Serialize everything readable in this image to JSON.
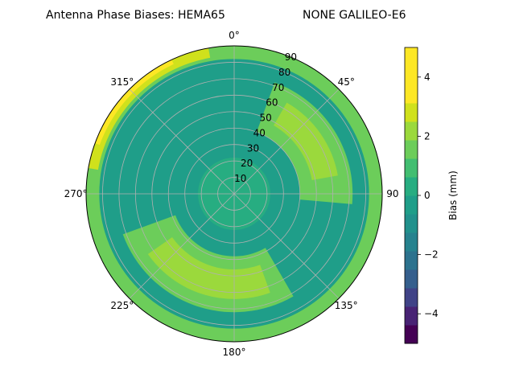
{
  "chart_data": {
    "type": "polar-contour",
    "title": "Antenna Phase Biases: HEMA65",
    "subtitle": "NONE GALILEO-E6",
    "angle_ticks": [
      {
        "deg": 0,
        "label": "0°"
      },
      {
        "deg": 45,
        "label": "45°"
      },
      {
        "deg": 90,
        "label": "90"
      },
      {
        "deg": 135,
        "label": "135°"
      },
      {
        "deg": 180,
        "label": "180°"
      },
      {
        "deg": 225,
        "label": "225°"
      },
      {
        "deg": 270,
        "label": "270°"
      },
      {
        "deg": 315,
        "label": "315°"
      }
    ],
    "radial_ticks": [
      10,
      20,
      30,
      40,
      50,
      60,
      70,
      80,
      90
    ],
    "radial_range": [
      0,
      90
    ],
    "grid": true,
    "colorbar": {
      "label": "Bias (mm)",
      "range": [
        -5,
        5
      ],
      "ticks": [
        -4,
        -2,
        0,
        2,
        4
      ],
      "levels": [
        -5,
        -4.375,
        -3.75,
        -3.125,
        -2.5,
        -1.875,
        -1.25,
        -0.625,
        0,
        0.625,
        1.25,
        1.875,
        2.5,
        3.125,
        3.75,
        4.375,
        5
      ],
      "colors": [
        "#440154",
        "#482374",
        "#404387",
        "#355f8d",
        "#2c728e",
        "#26828e",
        "#21918c",
        "#1f9e89",
        "#27ad81",
        "#42be71",
        "#6ccd5a",
        "#9bd93c",
        "#d0e11c",
        "#fde725",
        "#fde725",
        "#fde725"
      ]
    },
    "regions": [
      {
        "name": "background",
        "value": -0.3
      },
      {
        "name": "outer-rim",
        "r": [
          82,
          90
        ],
        "theta": [
          0,
          360
        ],
        "value": 1.6
      },
      {
        "name": "outer-rim-nw",
        "r": [
          84,
          90
        ],
        "theta": [
          280,
          350
        ],
        "value": 3.0
      },
      {
        "name": "outer-rim-nw-edge",
        "r": [
          87,
          90
        ],
        "theta": [
          290,
          335
        ],
        "value": 4.0
      },
      {
        "name": "ne-arc",
        "r": [
          40,
          72
        ],
        "theta": [
          20,
          95
        ],
        "value": 1.4
      },
      {
        "name": "ne-arc-inner",
        "r": [
          48,
          64
        ],
        "theta": [
          30,
          80
        ],
        "value": 2.2
      },
      {
        "name": "sw-arc",
        "r": [
          38,
          72
        ],
        "theta": [
          150,
          250
        ],
        "value": 1.3
      },
      {
        "name": "sw-arc-inner",
        "r": [
          46,
          64
        ],
        "theta": [
          160,
          235
        ],
        "value": 2.0
      },
      {
        "name": "center",
        "r": [
          0,
          22
        ],
        "theta": [
          0,
          360
        ],
        "value": 0.3
      }
    ]
  }
}
